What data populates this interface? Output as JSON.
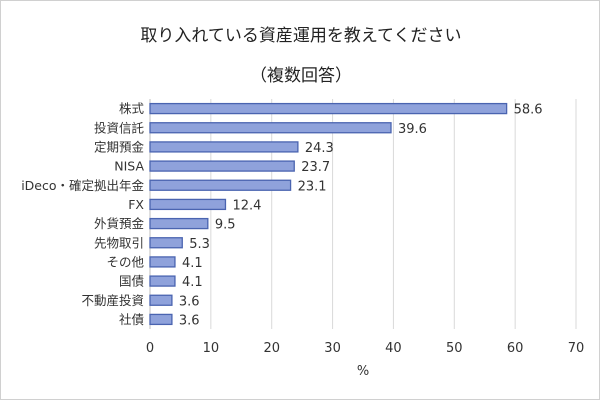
{
  "chart_data": {
    "type": "bar",
    "orientation": "horizontal",
    "title": "取り入れている資産運用を教えてください",
    "subtitle": "（複数回答）",
    "categories": [
      "株式",
      "投資信託",
      "定期預金",
      "NISA",
      "iDeco・確定拠出年金",
      "FX",
      "外貨預金",
      "先物取引",
      "その他",
      "国債",
      "不動産投資",
      "社債"
    ],
    "values": [
      58.6,
      39.6,
      24.3,
      23.7,
      23.1,
      12.4,
      9.5,
      5.3,
      4.1,
      4.1,
      3.6,
      3.6
    ],
    "xlabel": "%",
    "ylabel": "",
    "xlim": [
      0,
      70
    ],
    "xticks": [
      0,
      10,
      20,
      30,
      40,
      50,
      60,
      70
    ],
    "grid": "vertical",
    "legend": "none",
    "colors": {
      "bar_fill": "#8fa2db",
      "bar_stroke": "#4a64b0",
      "grid": "#d9d9d9"
    }
  }
}
